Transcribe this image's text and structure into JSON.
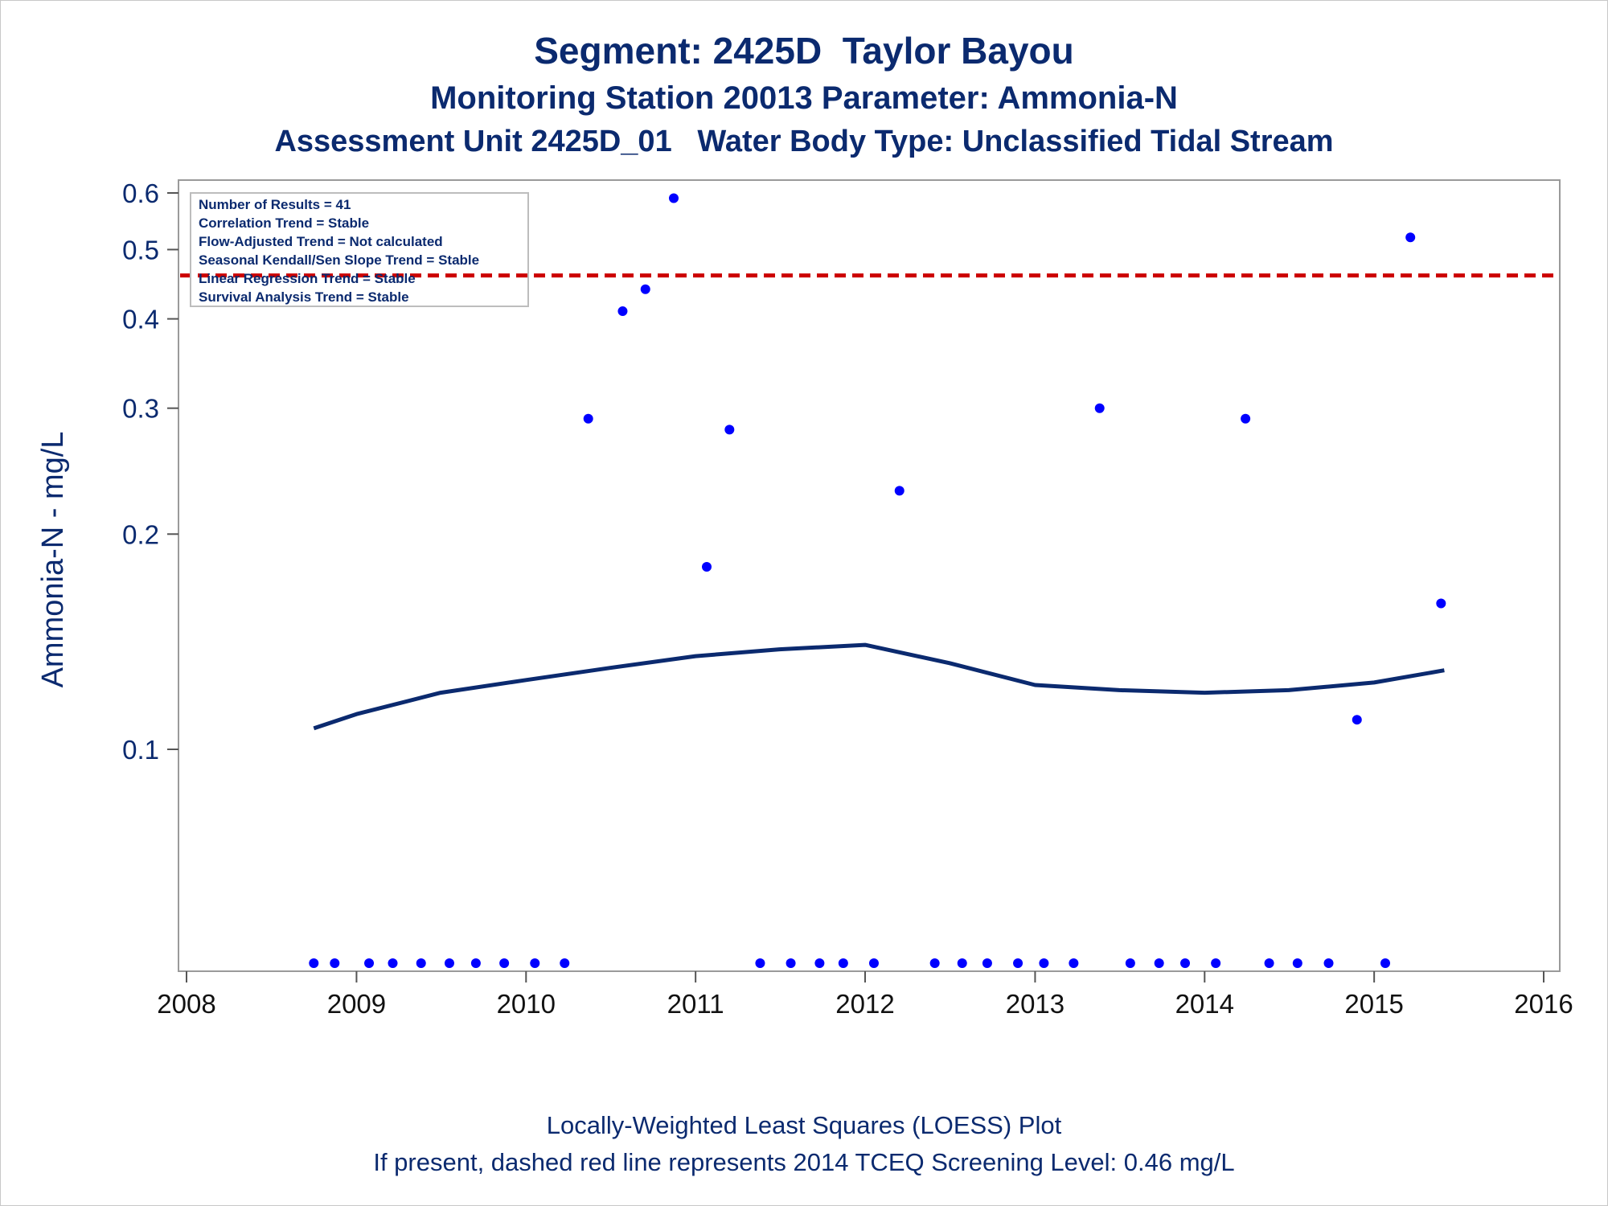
{
  "titles": {
    "line1": "Segment: 2425D  Taylor Bayou",
    "line2": "Monitoring Station 20013 Parameter: Ammonia-N",
    "line3": "Assessment Unit 2425D_01   Water Body Type: Unclassified Tidal Stream"
  },
  "footnotes": {
    "line1": "Locally-Weighted Least Squares (LOESS) Plot",
    "line2": "If present, dashed red line represents 2014 TCEQ Screening Level: 0.46 mg/L"
  },
  "stats_box": [
    "Number of Results = 41",
    "Correlation Trend = Stable",
    "Flow-Adjusted Trend = Not calculated",
    "Seasonal Kendall/Sen Slope Trend = Stable",
    "Linear Regression Trend = Stable",
    "Survival Analysis Trend = Stable"
  ],
  "colors": {
    "text": "#0b2a6f",
    "points": "#0000ff",
    "loess": "#0b2a6f",
    "screening": "#cc0000",
    "frame": "#9a9a9a"
  },
  "chart_data": {
    "type": "scatter",
    "title": "Segment: 2425D  Taylor Bayou",
    "ylabel": "Ammonia-N - mg/L",
    "xlabel": "",
    "y_scale": "log",
    "xlim": [
      "2008-01-01",
      "2016-01-01"
    ],
    "ylim": [
      0.05,
      0.63
    ],
    "x_ticks": [
      "2008",
      "2009",
      "2010",
      "2011",
      "2012",
      "2013",
      "2014",
      "2015",
      "2016"
    ],
    "y_ticks": [
      {
        "value": 0.1,
        "label": "0.1"
      },
      {
        "value": 0.2,
        "label": "0.2"
      },
      {
        "value": 0.3,
        "label": "0.3"
      },
      {
        "value": 0.4,
        "label": "0.4"
      },
      {
        "value": 0.5,
        "label": "0.5"
      },
      {
        "value": 0.6,
        "label": "0.6"
      }
    ],
    "grid": false,
    "legend": "top-left",
    "screening_level": {
      "value": 0.46,
      "style": "dashed",
      "color": "#cc0000"
    },
    "series": [
      {
        "type": "scatter",
        "points": [
          {
            "x": "2008-10-01",
            "y": 0.05
          },
          {
            "x": "2008-11-15",
            "y": 0.05
          },
          {
            "x": "2009-01-28",
            "y": 0.05
          },
          {
            "x": "2009-03-20",
            "y": 0.05
          },
          {
            "x": "2009-05-20",
            "y": 0.05
          },
          {
            "x": "2009-07-20",
            "y": 0.05
          },
          {
            "x": "2009-09-15",
            "y": 0.05
          },
          {
            "x": "2009-11-15",
            "y": 0.05
          },
          {
            "x": "2010-01-20",
            "y": 0.05
          },
          {
            "x": "2010-03-25",
            "y": 0.05
          },
          {
            "x": "2010-05-15",
            "y": 0.29
          },
          {
            "x": "2010-07-28",
            "y": 0.41
          },
          {
            "x": "2010-09-15",
            "y": 0.44
          },
          {
            "x": "2010-11-15",
            "y": 0.59
          },
          {
            "x": "2011-01-25",
            "y": 0.18
          },
          {
            "x": "2011-03-15",
            "y": 0.28
          },
          {
            "x": "2011-05-20",
            "y": 0.05
          },
          {
            "x": "2011-07-25",
            "y": 0.05
          },
          {
            "x": "2011-09-25",
            "y": 0.05
          },
          {
            "x": "2011-11-15",
            "y": 0.05
          },
          {
            "x": "2012-01-20",
            "y": 0.05
          },
          {
            "x": "2012-03-15",
            "y": 0.23
          },
          {
            "x": "2012-05-30",
            "y": 0.05
          },
          {
            "x": "2012-07-28",
            "y": 0.05
          },
          {
            "x": "2012-09-20",
            "y": 0.05
          },
          {
            "x": "2012-11-25",
            "y": 0.05
          },
          {
            "x": "2013-01-20",
            "y": 0.05
          },
          {
            "x": "2013-03-25",
            "y": 0.05
          },
          {
            "x": "2013-05-20",
            "y": 0.3
          },
          {
            "x": "2013-07-25",
            "y": 0.05
          },
          {
            "x": "2013-09-25",
            "y": 0.05
          },
          {
            "x": "2013-11-20",
            "y": 0.05
          },
          {
            "x": "2014-01-25",
            "y": 0.05
          },
          {
            "x": "2014-03-30",
            "y": 0.29
          },
          {
            "x": "2014-05-20",
            "y": 0.05
          },
          {
            "x": "2014-07-20",
            "y": 0.05
          },
          {
            "x": "2014-09-25",
            "y": 0.05
          },
          {
            "x": "2014-11-25",
            "y": 0.11
          },
          {
            "x": "2015-01-25",
            "y": 0.05
          },
          {
            "x": "2015-03-20",
            "y": 0.52
          },
          {
            "x": "2015-05-25",
            "y": 0.16
          }
        ]
      },
      {
        "type": "line",
        "points": [
          {
            "x": "2008-10-01",
            "y": 0.107
          },
          {
            "x": "2009-01-01",
            "y": 0.112
          },
          {
            "x": "2009-07-01",
            "y": 0.12
          },
          {
            "x": "2010-01-01",
            "y": 0.125
          },
          {
            "x": "2010-07-01",
            "y": 0.13
          },
          {
            "x": "2011-01-01",
            "y": 0.135
          },
          {
            "x": "2011-07-01",
            "y": 0.138
          },
          {
            "x": "2012-01-01",
            "y": 0.14
          },
          {
            "x": "2012-07-01",
            "y": 0.132
          },
          {
            "x": "2013-01-01",
            "y": 0.123
          },
          {
            "x": "2013-07-01",
            "y": 0.121
          },
          {
            "x": "2014-01-01",
            "y": 0.12
          },
          {
            "x": "2014-07-01",
            "y": 0.121
          },
          {
            "x": "2015-01-01",
            "y": 0.124
          },
          {
            "x": "2015-06-01",
            "y": 0.129
          }
        ]
      }
    ]
  }
}
